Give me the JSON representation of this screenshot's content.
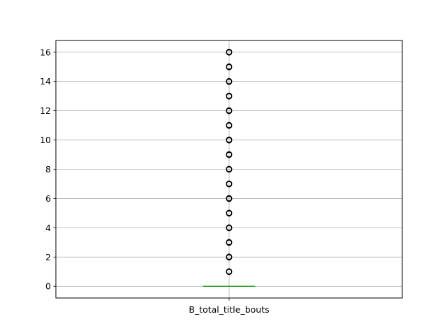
{
  "chart_data": {
    "type": "box",
    "categories": [
      "B_total_title_bouts"
    ],
    "xlabel": "",
    "ylabel": "",
    "ylim": [
      -0.8,
      16.8
    ],
    "yticks": [
      0,
      2,
      4,
      6,
      8,
      10,
      12,
      14,
      16
    ],
    "ytick_labels": [
      "0",
      "2",
      "4",
      "6",
      "8",
      "10",
      "12",
      "14",
      "16"
    ],
    "grid": true,
    "series": [
      {
        "category": "B_total_title_bouts",
        "whisker_low": 0,
        "q1": 0,
        "median": 0,
        "q3": 0,
        "whisker_high": 0,
        "outliers": [
          1,
          2,
          3,
          4,
          5,
          6,
          7,
          8,
          9,
          10,
          11,
          12,
          13,
          14,
          15,
          16
        ],
        "median_color": "#2ca02c",
        "box_color": "#1f77b4"
      }
    ]
  }
}
